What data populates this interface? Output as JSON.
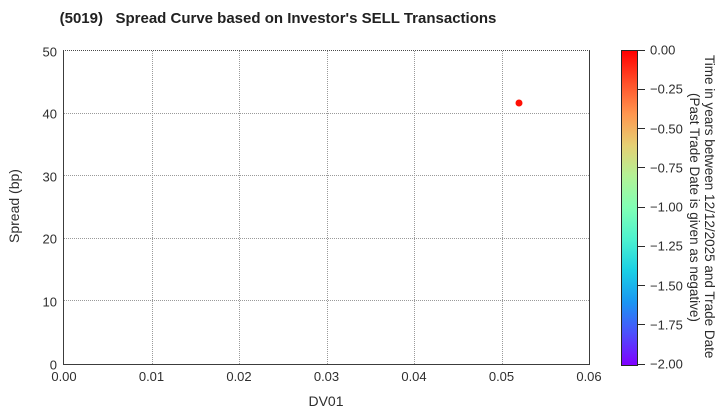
{
  "chart_data": {
    "type": "scatter",
    "title": "(5019)   Spread Curve based on Investor's SELL Transactions",
    "xlabel": "DV01",
    "ylabel": "Spread (bp)",
    "xlim": [
      0.0,
      0.06
    ],
    "ylim": [
      0,
      50
    ],
    "xtick_labels": [
      "0.00",
      "0.01",
      "0.02",
      "0.03",
      "0.04",
      "0.05",
      "0.06"
    ],
    "ytick_labels": [
      "0",
      "10",
      "20",
      "30",
      "40",
      "50"
    ],
    "grid": "dotted",
    "points": [
      {
        "x": 0.052,
        "y": 41.7,
        "color": "#ff1005",
        "colorbar_value": 0.0
      }
    ],
    "colorbar": {
      "label_line1": "Time in years between 12/12/2025 and Trade Date",
      "label_line2": "(Past Trade Date is given as negative)",
      "vmax": 0.0,
      "vmin": -2.0,
      "tick_labels": [
        "0.00",
        "−0.25",
        "−0.50",
        "−0.75",
        "−1.00",
        "−1.25",
        "−1.50",
        "−1.75",
        "−2.00"
      ],
      "colormap": "rainbow reversed (red at 0.00, violet at −2.00)",
      "gradient": [
        {
          "pct": 0,
          "color": "#ff0000"
        },
        {
          "pct": 10,
          "color": "#ff4f29"
        },
        {
          "pct": 20,
          "color": "#ff964f"
        },
        {
          "pct": 30,
          "color": "#e6cf73"
        },
        {
          "pct": 40,
          "color": "#b3f296"
        },
        {
          "pct": 50,
          "color": "#80ffb5"
        },
        {
          "pct": 60,
          "color": "#4df2cf"
        },
        {
          "pct": 70,
          "color": "#1acfe5"
        },
        {
          "pct": 80,
          "color": "#1a96f2"
        },
        {
          "pct": 90,
          "color": "#4d4ffc"
        },
        {
          "pct": 100,
          "color": "#8000ff"
        }
      ]
    },
    "colors": {
      "spine": "#3c3c3c",
      "grid": "#9a9a9a",
      "text": "#2e2e2e",
      "background": "#ffffff"
    }
  }
}
